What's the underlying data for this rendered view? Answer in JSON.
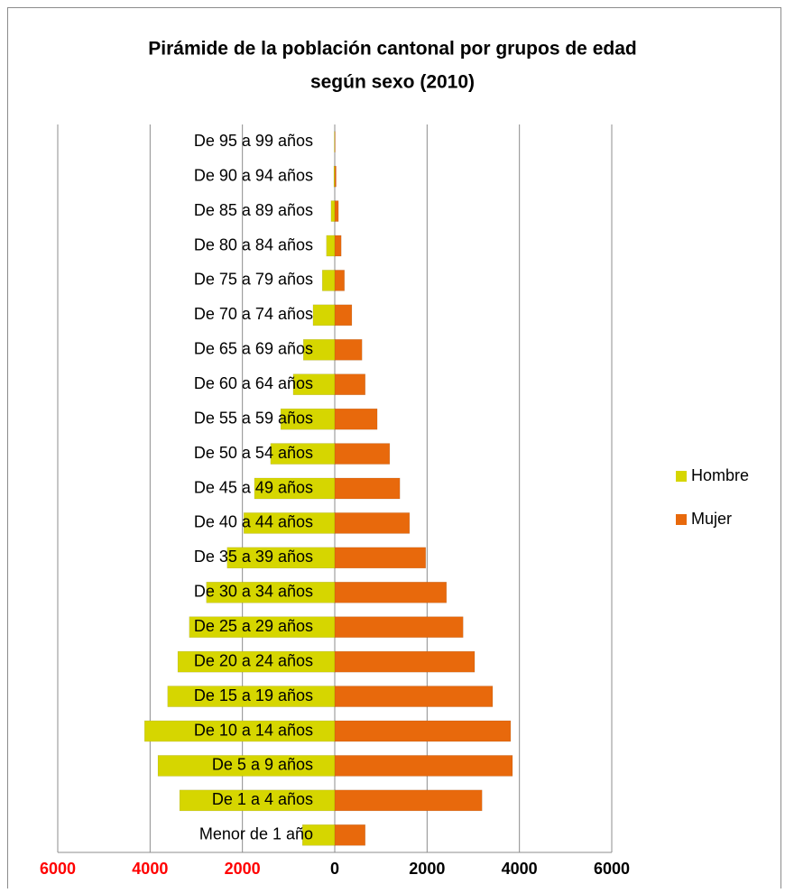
{
  "chart_data": {
    "type": "pyramid",
    "title": [
      "Pirámide de la población cantonal por grupos de edad",
      "según sexo (2010)"
    ],
    "categories": [
      "Menor de 1 año",
      "De 1 a 4 años",
      "De 5 a 9 años",
      "De 10 a 14 años",
      "De 15 a 19 años",
      "De 20 a 24 años",
      "De 25 a 29 años",
      "De 30 a 34 años",
      "De 35 a 39 años",
      "De 40 a 44 años",
      "De 45 a 49 años",
      "De 50 a 54 años",
      "De 55 a 59 años",
      "De 60 a 64 años",
      "De 65 a 69 años",
      "De 70 a 74 años",
      "De 75 a 79 años",
      "De 80 a 84 años",
      "De 85 a 89 años",
      "De 90 a 94 años",
      "De 95 a 99 años"
    ],
    "series": [
      {
        "name": "Hombre",
        "color": "#d6d600",
        "values": [
          -700,
          -3360,
          -3830,
          -4120,
          -3620,
          -3400,
          -3150,
          -2780,
          -2330,
          -1970,
          -1740,
          -1390,
          -1170,
          -900,
          -680,
          -470,
          -270,
          -180,
          -80,
          -20,
          -10
        ]
      },
      {
        "name": "Mujer",
        "color": "#e8690c",
        "values": [
          660,
          3190,
          3850,
          3810,
          3420,
          3030,
          2780,
          2420,
          1970,
          1620,
          1410,
          1190,
          920,
          660,
          590,
          370,
          210,
          140,
          80,
          30,
          10
        ]
      }
    ],
    "xlim": [
      -6000,
      6000
    ],
    "xticks": [
      {
        "value": -6000,
        "label": "6000"
      },
      {
        "value": -4000,
        "label": "4000"
      },
      {
        "value": -2000,
        "label": "2000"
      },
      0,
      2000,
      4000,
      6000
    ],
    "negative_tick_color": "#ff0000",
    "tick_color": "#000000",
    "grid": true,
    "legend": "right"
  }
}
